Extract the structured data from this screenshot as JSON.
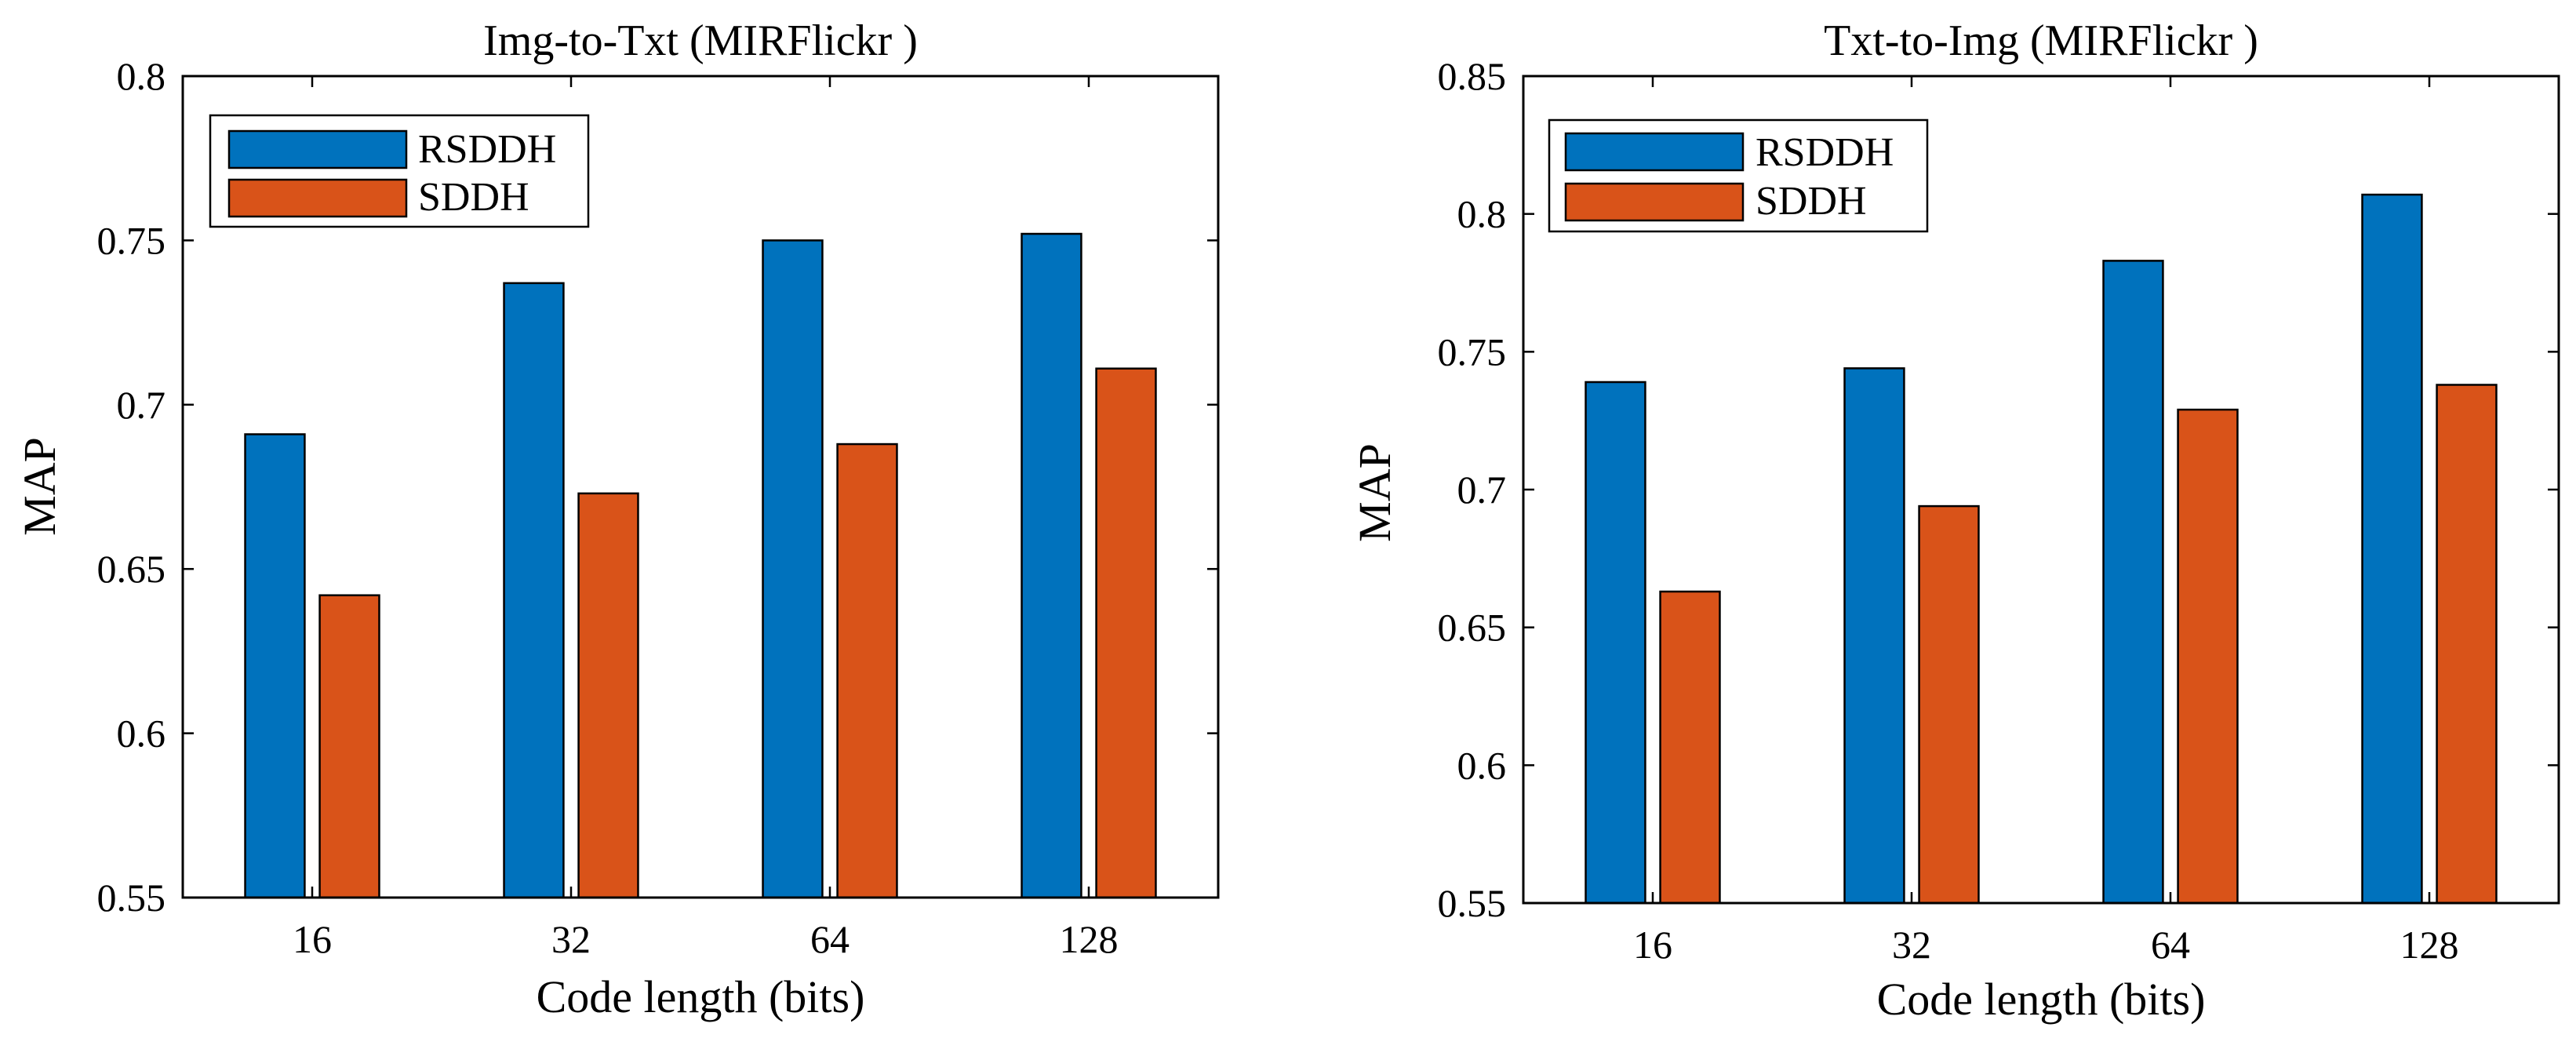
{
  "chart_data": [
    {
      "type": "bar",
      "title": "Img-to-Txt (MIRFlickr )",
      "xlabel": "Code length (bits)",
      "ylabel": "MAP",
      "categories": [
        "16",
        "32",
        "64",
        "128"
      ],
      "ylim": [
        0.55,
        0.8
      ],
      "yticks": [
        0.55,
        0.6,
        0.65,
        0.7,
        0.75,
        0.8
      ],
      "ytick_labels": [
        "0.55",
        "0.6",
        "0.65",
        "0.7",
        "0.75",
        "0.8"
      ],
      "legend_position": "top-left",
      "grid": false,
      "series": [
        {
          "name": "RSDDH",
          "color": "#0072BD",
          "values": [
            0.691,
            0.737,
            0.75,
            0.752
          ]
        },
        {
          "name": "SDDH",
          "color": "#D95319",
          "values": [
            0.642,
            0.673,
            0.688,
            0.711
          ]
        }
      ]
    },
    {
      "type": "bar",
      "title": "Txt-to-Img (MIRFlickr )",
      "xlabel": "Code length (bits)",
      "ylabel": "MAP",
      "categories": [
        "16",
        "32",
        "64",
        "128"
      ],
      "ylim": [
        0.55,
        0.85
      ],
      "yticks": [
        0.55,
        0.6,
        0.65,
        0.7,
        0.75,
        0.8,
        0.85
      ],
      "ytick_labels": [
        "0.55",
        "0.6",
        "0.65",
        "0.7",
        "0.75",
        "0.8",
        "0.85"
      ],
      "legend_position": "top-left",
      "grid": false,
      "series": [
        {
          "name": "RSDDH",
          "color": "#0072BD",
          "values": [
            0.739,
            0.744,
            0.783,
            0.807
          ]
        },
        {
          "name": "SDDH",
          "color": "#D95319",
          "values": [
            0.663,
            0.694,
            0.729,
            0.738
          ]
        }
      ]
    }
  ]
}
